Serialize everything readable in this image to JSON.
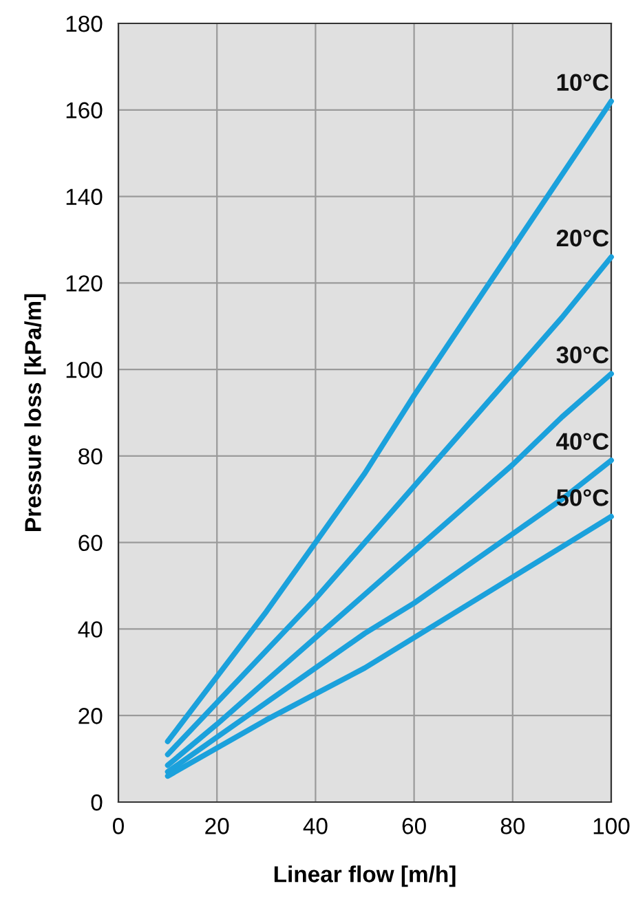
{
  "chart_data": {
    "type": "line",
    "xlabel": "Linear flow [m/h]",
    "ylabel": "Pressure loss [kPa/m]",
    "x": [
      10,
      20,
      30,
      40,
      50,
      60,
      70,
      80,
      90,
      100
    ],
    "series": [
      {
        "name": "10°C",
        "color": "#1ba1dc",
        "values": [
          14,
          29,
          44,
          60,
          76,
          94,
          111,
          128,
          145,
          162
        ]
      },
      {
        "name": "20°C",
        "color": "#1ba1dc",
        "values": [
          11,
          23,
          35,
          47,
          60,
          73,
          86,
          99,
          112,
          126
        ]
      },
      {
        "name": "30°C",
        "color": "#1ba1dc",
        "values": [
          8.5,
          18,
          28,
          38,
          48,
          58,
          68,
          78,
          89,
          99
        ]
      },
      {
        "name": "40°C",
        "color": "#1ba1dc",
        "values": [
          7,
          15,
          23,
          31,
          39,
          46,
          54,
          62,
          70,
          79
        ]
      },
      {
        "name": "50°C",
        "color": "#1ba1dc",
        "values": [
          6,
          12.5,
          19,
          25,
          31,
          38,
          45,
          52,
          59,
          66
        ]
      }
    ],
    "xlim": [
      0,
      100
    ],
    "xticks": [
      0,
      20,
      40,
      60,
      80,
      100
    ],
    "ylim": [
      0,
      180
    ],
    "yticks": [
      0,
      20,
      40,
      60,
      80,
      100,
      120,
      140,
      160,
      180
    ],
    "grid": true,
    "legend": false,
    "marker": "none",
    "line_style": "solid"
  }
}
